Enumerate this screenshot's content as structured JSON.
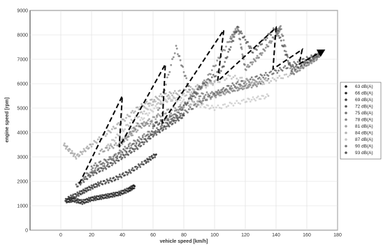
{
  "chart_data": {
    "type": "scatter",
    "title": "",
    "xlabel": "vehicle speed [km/h]",
    "ylabel": "engine speed [rpm]",
    "xlim": [
      -20,
      180
    ],
    "ylim": [
      0,
      9000
    ],
    "x_ticks": [
      "0",
      "20",
      "40",
      "60",
      "80",
      "100",
      "120",
      "140",
      "160",
      "180"
    ],
    "y_ticks": [
      "0",
      "1000",
      "2000",
      "3000",
      "4000",
      "5000",
      "6000",
      "7000",
      "8000",
      "9000"
    ],
    "grid": true,
    "legend_position": "right",
    "series": [
      {
        "name": "63 dB(A)",
        "color": "#1a1a1a",
        "points": [
          [
            3,
            1200
          ],
          [
            8,
            1250
          ],
          [
            14,
            1150
          ],
          [
            20,
            1280
          ],
          [
            26,
            1350
          ],
          [
            32,
            1420
          ],
          [
            38,
            1500
          ],
          [
            44,
            1650
          ],
          [
            48,
            1800
          ]
        ]
      },
      {
        "name": "66 dB(A)",
        "color": "#2e2e2e",
        "points": [
          [
            5,
            1300
          ],
          [
            12,
            1500
          ],
          [
            18,
            1700
          ],
          [
            25,
            1900
          ],
          [
            35,
            2100
          ],
          [
            45,
            2400
          ],
          [
            55,
            2800
          ],
          [
            62,
            3100
          ]
        ]
      },
      {
        "name": "69 dB(A)",
        "color": "#424242",
        "points": [
          [
            10,
            1800
          ],
          [
            20,
            2300
          ],
          [
            30,
            2600
          ],
          [
            40,
            3000
          ],
          [
            50,
            3400
          ],
          [
            60,
            3900
          ],
          [
            70,
            4300
          ],
          [
            80,
            4700
          ]
        ]
      },
      {
        "name": "72 dB(A)",
        "color": "#5a5a5a",
        "points": [
          [
            20,
            2600
          ],
          [
            35,
            3000
          ],
          [
            50,
            3600
          ],
          [
            65,
            4200
          ],
          [
            80,
            4800
          ],
          [
            95,
            5400
          ],
          [
            110,
            5900
          ],
          [
            125,
            6200
          ],
          [
            140,
            6500
          ],
          [
            155,
            6900
          ],
          [
            168,
            7200
          ]
        ]
      },
      {
        "name": "75 dB(A)",
        "color": "#707070",
        "points": [
          [
            15,
            2200
          ],
          [
            30,
            2800
          ],
          [
            45,
            3500
          ],
          [
            60,
            4100
          ],
          [
            75,
            7500
          ],
          [
            85,
            5500
          ],
          [
            100,
            5600
          ],
          [
            115,
            5800
          ],
          [
            130,
            6000
          ]
        ]
      },
      {
        "name": "78 dB(A)",
        "color": "#8a8a8a",
        "points": [
          [
            25,
            3200
          ],
          [
            40,
            3600
          ],
          [
            55,
            4400
          ],
          [
            70,
            4900
          ],
          [
            90,
            5300
          ],
          [
            105,
            5600
          ],
          [
            120,
            5900
          ],
          [
            135,
            6200
          ]
        ]
      },
      {
        "name": "81 dB(A)",
        "color": "#a0a0a0",
        "points": [
          [
            2,
            3500
          ],
          [
            10,
            3000
          ],
          [
            20,
            3500
          ],
          [
            35,
            4200
          ],
          [
            50,
            5000
          ],
          [
            65,
            5500
          ],
          [
            80,
            5700
          ],
          [
            100,
            6100
          ]
        ]
      },
      {
        "name": "84 dB(A)",
        "color": "#b4b4b4",
        "points": [
          [
            30,
            3400
          ],
          [
            45,
            4400
          ],
          [
            60,
            5200
          ],
          [
            75,
            5400
          ],
          [
            90,
            5800
          ],
          [
            110,
            6300
          ],
          [
            130,
            6000
          ],
          [
            150,
            6400
          ],
          [
            165,
            7000
          ]
        ]
      },
      {
        "name": "87 dB(A)",
        "color": "#c6c6c6",
        "points": [
          [
            40,
            3700
          ],
          [
            55,
            4700
          ],
          [
            70,
            5400
          ],
          [
            85,
            5200
          ],
          [
            100,
            5000
          ],
          [
            120,
            5300
          ],
          [
            135,
            5500
          ]
        ]
      },
      {
        "name": "90 dB(A)",
        "color": "#7a7a7a",
        "points": [
          [
            38,
            3500
          ],
          [
            50,
            4300
          ],
          [
            65,
            4400
          ],
          [
            80,
            5100
          ],
          [
            95,
            6200
          ],
          [
            110,
            7800
          ],
          [
            115,
            8300
          ],
          [
            120,
            6600
          ],
          [
            130,
            7200
          ],
          [
            140,
            8000
          ],
          [
            143,
            8300
          ],
          [
            150,
            6400
          ],
          [
            160,
            6800
          ],
          [
            168,
            7100
          ]
        ]
      },
      {
        "name": "93 dB(A)",
        "color": "#555555",
        "points": [
          [
            60,
            4300
          ],
          [
            75,
            4700
          ],
          [
            90,
            5800
          ],
          [
            105,
            6600
          ],
          [
            115,
            8300
          ],
          [
            125,
            7300
          ],
          [
            140,
            8300
          ],
          [
            150,
            6600
          ],
          [
            160,
            6900
          ],
          [
            170,
            7300
          ]
        ]
      }
    ],
    "annotation_path": {
      "points": [
        [
          12,
          1900
        ],
        [
          40,
          5500
        ],
        [
          38,
          3400
        ],
        [
          68,
          6800
        ],
        [
          66,
          4400
        ],
        [
          106,
          8200
        ],
        [
          102,
          6100
        ],
        [
          140,
          8300
        ],
        [
          138,
          6600
        ],
        [
          157,
          7400
        ],
        [
          155,
          6800
        ]
      ],
      "arrow_end": [
        172,
        7400
      ],
      "style": "dashed-arrow"
    }
  }
}
